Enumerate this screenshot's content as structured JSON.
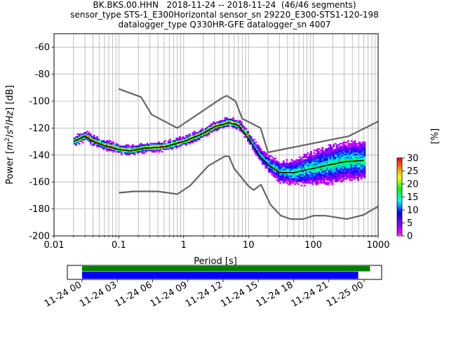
{
  "header": {
    "line1": "BK.BKS.00.HHN   2018-11-24 -- 2018-11-24  (46/46 segments)",
    "line2": "sensor_type STS-1_E300Horizontal sensor_sn 29220_E300-STS1-120-198",
    "line3": "datalogger_type Q330HR-GFE datalogger_sn 4007"
  },
  "chart_data": [
    {
      "type": "heatmap",
      "title": "BK.BKS.00.HHN   2018-11-24 -- 2018-11-24  (46/46 segments)",
      "xlabel": "Period [s]",
      "ylabel": "Power [m²/s⁴/Hz] [dB]",
      "xscale": "log",
      "xlim": [
        0.01,
        1000
      ],
      "ylim": [
        -200,
        -50
      ],
      "grid": true,
      "x_ticks": [
        "0.01",
        "0.1",
        "1",
        "10",
        "100",
        "1000"
      ],
      "y_ticks": [
        "-60",
        "-80",
        "-100",
        "-120",
        "-140",
        "-160",
        "-180",
        "-200"
      ],
      "colorbar": {
        "label": "[%]",
        "range": [
          0,
          30
        ],
        "ticks": [
          "0",
          "5",
          "10",
          "15",
          "20",
          "25",
          "30"
        ]
      },
      "series": [
        {
          "name": "",
          "role": "mean",
          "color": "#000000",
          "points": [
            [
              0.02,
              -130
            ],
            [
              0.03,
              -126
            ],
            [
              0.04,
              -130
            ],
            [
              0.06,
              -133
            ],
            [
              0.1,
              -136
            ],
            [
              0.15,
              -137
            ],
            [
              0.25,
              -135
            ],
            [
              0.5,
              -134
            ],
            [
              1,
              -130
            ],
            [
              2,
              -124
            ],
            [
              3,
              -119
            ],
            [
              5,
              -116
            ],
            [
              7,
              -118
            ],
            [
              10,
              -128
            ],
            [
              15,
              -141
            ],
            [
              20,
              -147
            ],
            [
              30,
              -153
            ],
            [
              50,
              -153
            ],
            [
              80,
              -151
            ],
            [
              150,
              -148
            ],
            [
              300,
              -145
            ],
            [
              600,
              -144
            ]
          ]
        },
        {
          "name": "",
          "role": "noise-model-high",
          "color": "#666666",
          "points": [
            [
              0.1,
              -91
            ],
            [
              0.22,
              -97
            ],
            [
              0.32,
              -110
            ],
            [
              0.8,
              -120
            ],
            [
              3.8,
              -98
            ],
            [
              4.6,
              -96
            ],
            [
              6.3,
              -100
            ],
            [
              8,
              -113
            ],
            [
              15.4,
              -120
            ],
            [
              20,
              -138
            ],
            [
              354,
              -126
            ],
            [
              10000,
              -91
            ]
          ]
        },
        {
          "name": "",
          "role": "noise-model-low",
          "color": "#666666",
          "points": [
            [
              0.1,
              -168
            ],
            [
              0.17,
              -167
            ],
            [
              0.4,
              -167
            ],
            [
              0.8,
              -169
            ],
            [
              1.24,
              -163
            ],
            [
              2.4,
              -148
            ],
            [
              4.3,
              -141
            ],
            [
              5,
              -141
            ],
            [
              6,
              -150
            ],
            [
              10,
              -163
            ],
            [
              12,
              -166
            ],
            [
              15.6,
              -162
            ],
            [
              21.9,
              -177
            ],
            [
              31.6,
              -185
            ],
            [
              45,
              -187.5
            ],
            [
              70,
              -187.5
            ],
            [
              101,
              -185
            ],
            [
              154,
              -185
            ],
            [
              328,
              -187.5
            ],
            [
              600,
              -184.4
            ],
            [
              1000,
              -178
            ]
          ]
        }
      ]
    },
    {
      "type": "bar",
      "title": "",
      "xlabel": "",
      "ylabel": "",
      "x_ticks": [
        "11-24 00",
        "11-24 03",
        "11-24 06",
        "11-24 09",
        "11-24 12",
        "11-24 15",
        "11-24 18",
        "11-24 21",
        "11-25 00"
      ],
      "series": [
        {
          "name": "",
          "color": "#008000",
          "start": "11-24 00:00",
          "end": "11-25 00:30"
        },
        {
          "name": "",
          "color": "#0000ff",
          "start": "11-24 00:00",
          "end": "11-24 23:30"
        }
      ]
    }
  ]
}
